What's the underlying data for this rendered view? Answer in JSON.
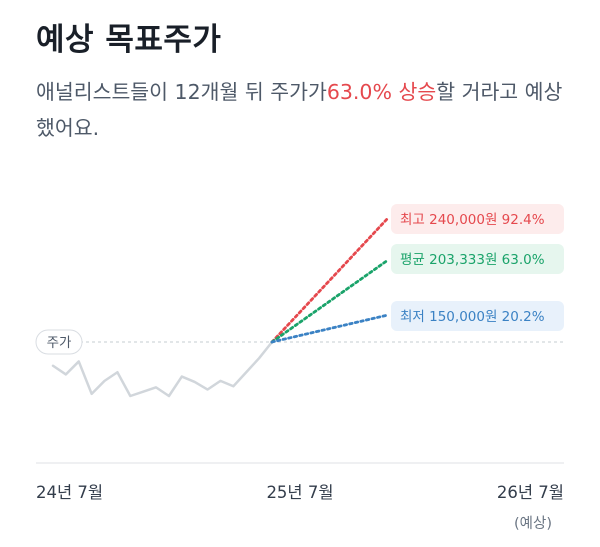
{
  "title": "예상 목표주가",
  "subtitle": {
    "before": "애널리스트들이 12개월 뒤 주가가",
    "highlight": "63.0% 상승",
    "after": "할 거라고 예상했어요."
  },
  "colors": {
    "up_red": "#e5484d",
    "green": "#1aa36a",
    "blue": "#3b82c4",
    "history_line": "#d1d6db"
  },
  "chart_data": {
    "type": "line",
    "current_label": "주가",
    "x_ticks": [
      {
        "label": "24년 7월",
        "sub": ""
      },
      {
        "label": "25년 7월",
        "sub": ""
      },
      {
        "label": "26년 7월",
        "sub": "(예상)"
      }
    ],
    "history": [
      0.28,
      0.2,
      0.32,
      0.02,
      0.14,
      0.22,
      0.0,
      0.04,
      0.08,
      0.0,
      0.18,
      0.13,
      0.06,
      0.14,
      0.09,
      0.22,
      0.35,
      0.5
    ],
    "targets": [
      {
        "key": "high",
        "label": "최고 240,000원 92.4%",
        "value_won": 240000,
        "change_pct": 92.4,
        "color": "#e5484d",
        "bg": "#fdecec"
      },
      {
        "key": "avg",
        "label": "평균 203,333원 63.0%",
        "value_won": 203333,
        "change_pct": 63.0,
        "color": "#1aa36a",
        "bg": "#e6f6ee"
      },
      {
        "key": "low",
        "label": "최저 150,000원 20.2%",
        "value_won": 150000,
        "change_pct": 20.2,
        "color": "#3b82c4",
        "bg": "#e8f1fb"
      }
    ]
  }
}
